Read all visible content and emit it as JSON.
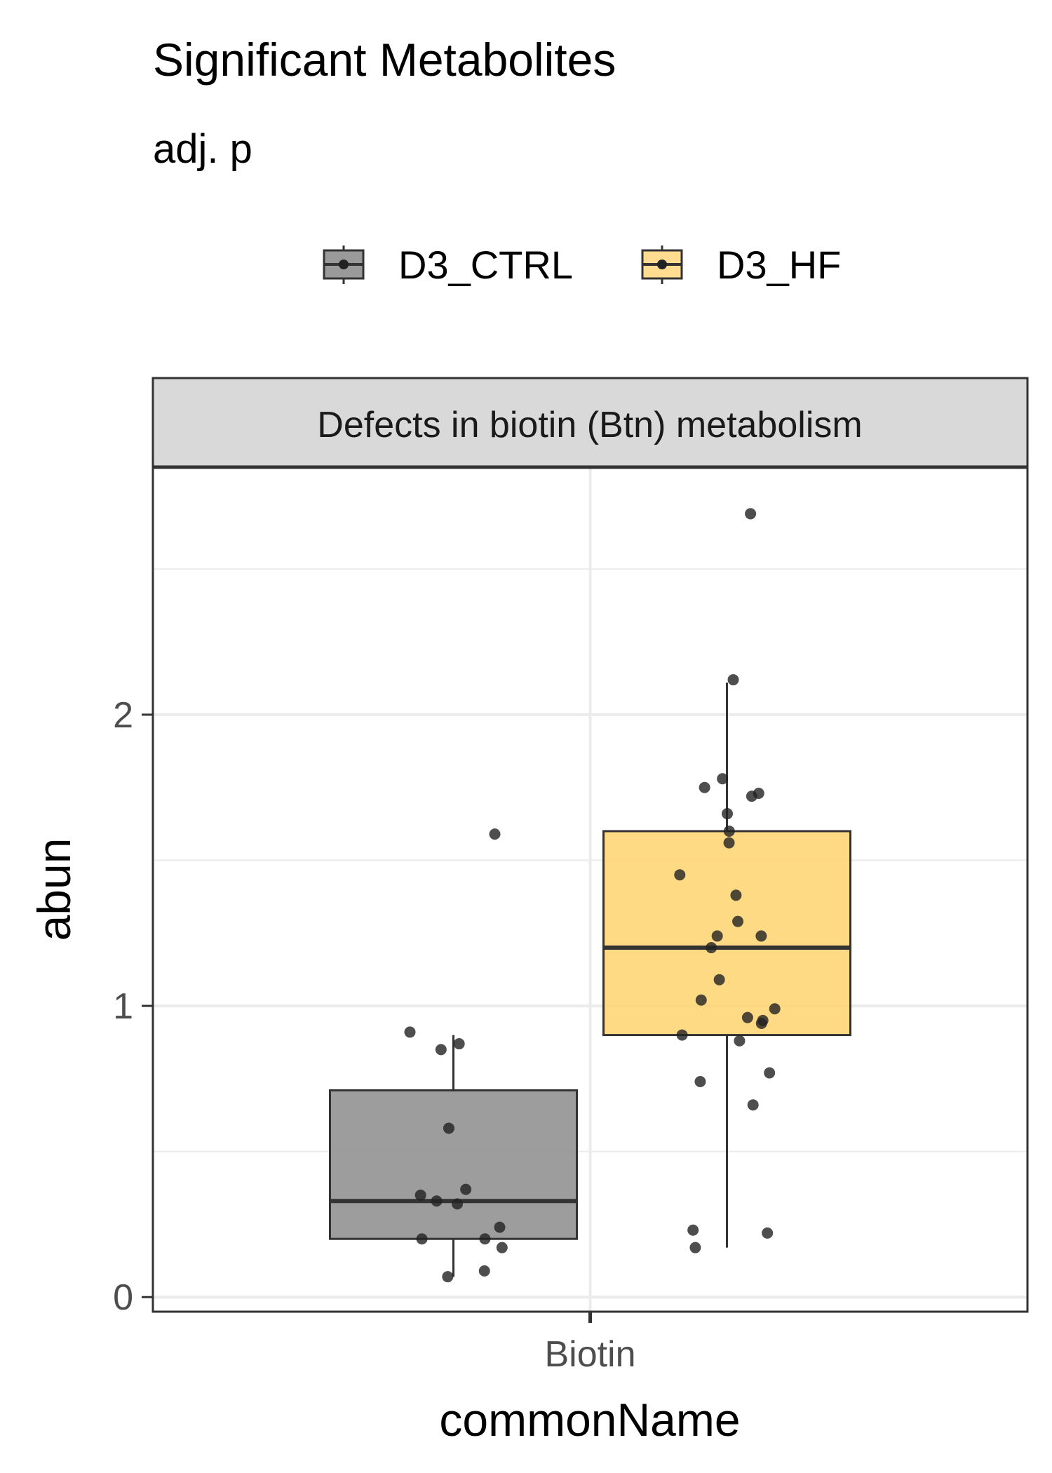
{
  "chart_data": {
    "type": "boxplot",
    "title": "Significant Metabolites",
    "subtitle": "adj. p",
    "facet_label": "Defects in biotin (Btn) metabolism",
    "xlabel": "commonName",
    "ylabel": "abun",
    "categories": [
      "Biotin"
    ],
    "ylim": [
      -0.05,
      2.85
    ],
    "yticks": [
      0,
      1,
      2
    ],
    "ytick_labels": [
      "0",
      "1",
      "2"
    ],
    "legend_position": "top",
    "grid": true,
    "series": [
      {
        "name": "D3_CTRL",
        "color": "#7a7a7a",
        "box": {
          "q1": 0.2,
          "median": 0.33,
          "q3": 0.71,
          "whisker_low": 0.07,
          "whisker_high": 0.9
        },
        "points": [
          1.59,
          0.91,
          0.87,
          0.85,
          0.58,
          0.37,
          0.35,
          0.33,
          0.32,
          0.24,
          0.2,
          0.2,
          0.17,
          0.09,
          0.07
        ]
      },
      {
        "name": "D3_HF",
        "color": "#ffd36e",
        "box": {
          "q1": 0.9,
          "median": 1.2,
          "q3": 1.6,
          "whisker_low": 0.17,
          "whisker_high": 2.11
        },
        "points": [
          2.69,
          2.12,
          1.78,
          1.75,
          1.73,
          1.72,
          1.66,
          1.6,
          1.56,
          1.45,
          1.38,
          1.29,
          1.24,
          1.24,
          1.2,
          1.09,
          1.02,
          0.99,
          0.96,
          0.95,
          0.94,
          0.9,
          0.88,
          0.77,
          0.74,
          0.66,
          0.23,
          0.22,
          0.17
        ]
      }
    ]
  }
}
